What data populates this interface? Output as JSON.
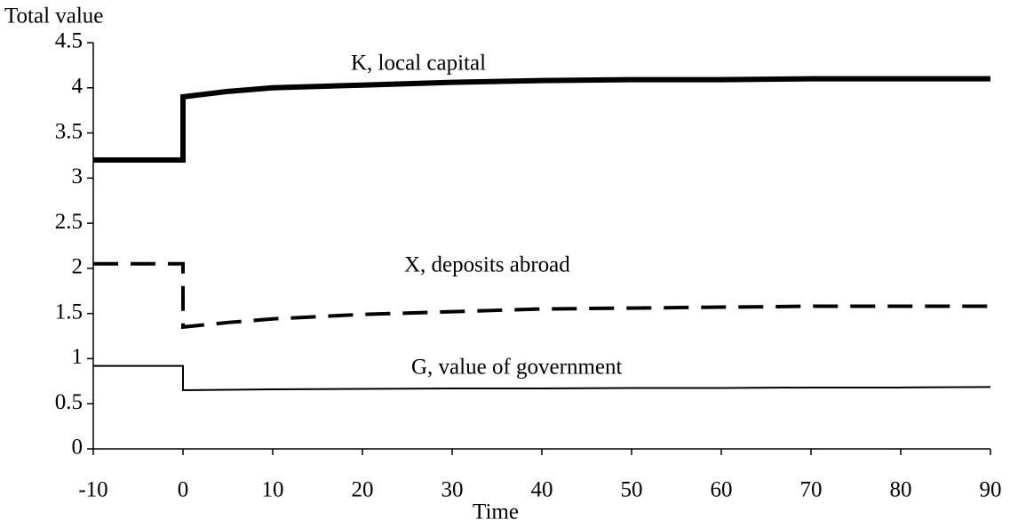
{
  "chart_data": {
    "type": "line",
    "x_label": "Time",
    "y_label": "Total value",
    "x": [
      -10,
      0,
      0,
      5,
      10,
      20,
      30,
      40,
      50,
      60,
      70,
      80,
      90
    ],
    "series": [
      {
        "name": "K, local capital",
        "color": "#000000",
        "width": 6,
        "dash": "solid",
        "values": [
          3.2,
          3.2,
          3.9,
          3.96,
          4.0,
          4.03,
          4.06,
          4.08,
          4.09,
          4.09,
          4.1,
          4.1,
          4.1
        ]
      },
      {
        "name": "X, deposits abroad",
        "color": "#000000",
        "width": 4,
        "dash": "dashed",
        "values": [
          2.05,
          2.05,
          1.35,
          1.4,
          1.44,
          1.49,
          1.52,
          1.55,
          1.56,
          1.57,
          1.58,
          1.58,
          1.58
        ]
      },
      {
        "name": "G, value of government",
        "color": "#000000",
        "width": 2,
        "dash": "solid",
        "values": [
          0.92,
          0.92,
          0.65,
          0.655,
          0.66,
          0.665,
          0.67,
          0.67,
          0.675,
          0.675,
          0.68,
          0.68,
          0.685
        ]
      }
    ],
    "xlim": [
      -10,
      90
    ],
    "xticks": [
      -10,
      0,
      10,
      20,
      30,
      40,
      50,
      60,
      70,
      80,
      90
    ],
    "ylim": [
      0,
      4.5
    ],
    "yticks": [
      0,
      0.5,
      1,
      1.5,
      2,
      2.5,
      3,
      3.5,
      4,
      4.5
    ],
    "grid": false
  }
}
